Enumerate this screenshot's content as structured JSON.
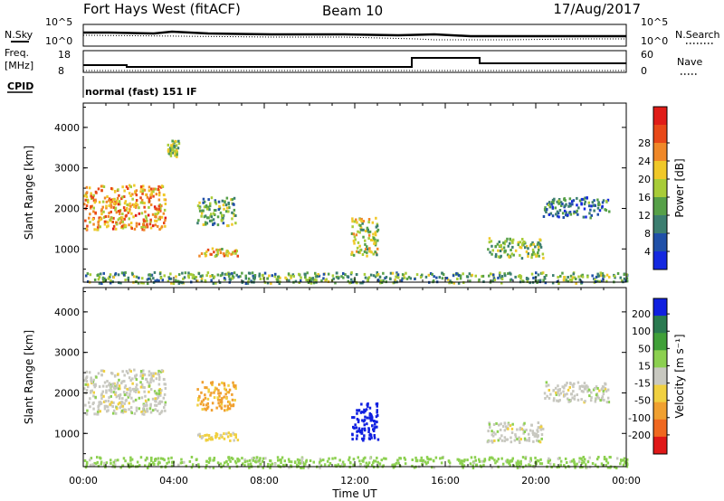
{
  "header": {
    "title": "Fort Hays West (fitACF)",
    "beam": "Beam 10",
    "date": "17/Aug/2017"
  },
  "status_panels": {
    "nsky_label": "N.Sky",
    "nsearch_label": "N.Search",
    "noise_ticks": [
      "10^5",
      "10^0"
    ],
    "freq_label_1": "Freq.",
    "freq_label_2": "[MHz]",
    "freq_ticks": [
      "18",
      "8"
    ],
    "nave_label": "Nave",
    "nave_ticks": [
      "60",
      "0"
    ],
    "cpid_label": "CPID",
    "cpid_text": "normal (fast) 151 IF"
  },
  "chart_data": [
    {
      "type": "heatmap",
      "title": "",
      "xlabel": "",
      "ylabel": "Slant Range [km]",
      "xlim": [
        "00:00",
        "24:00"
      ],
      "ylim": [
        180,
        4600
      ],
      "ytick_labels": [
        "1000",
        "2000",
        "3000",
        "4000"
      ],
      "colorbar": {
        "label": "Power [dB]",
        "range": [
          0,
          32
        ],
        "tick_labels": [
          "4",
          "8",
          "12",
          "16",
          "20",
          "24",
          "28"
        ],
        "colors": [
          "#1428e0",
          "#2050a8",
          "#3c7e70",
          "#56a048",
          "#a8cc38",
          "#f0c828",
          "#f08828",
          "#e84818",
          "#e01c18"
        ]
      },
      "regions": [
        {
          "t0": 0.0,
          "t1": 3.6,
          "r0": 1500,
          "r1": 2600,
          "value": 22
        },
        {
          "t0": 3.7,
          "t1": 4.2,
          "r0": 3300,
          "r1": 3700,
          "value": 14
        },
        {
          "t0": 5.0,
          "t1": 6.7,
          "r0": 1600,
          "r1": 2300,
          "value": 12
        },
        {
          "t0": 5.0,
          "t1": 6.8,
          "r0": 850,
          "r1": 1050,
          "value": 20
        },
        {
          "t0": 11.8,
          "t1": 13.0,
          "r0": 850,
          "r1": 1800,
          "value": 16
        },
        {
          "t0": 17.8,
          "t1": 20.3,
          "r0": 800,
          "r1": 1300,
          "value": 14
        },
        {
          "t0": 20.3,
          "t1": 23.2,
          "r0": 1800,
          "r1": 2300,
          "value": 8
        },
        {
          "t0": 0.0,
          "t1": 24.0,
          "r0": 180,
          "r1": 450,
          "value": 12
        }
      ]
    },
    {
      "type": "heatmap",
      "title": "",
      "xlabel": "Time UT",
      "ylabel": "Slant Range [km]",
      "xlim": [
        "00:00",
        "24:00"
      ],
      "ylim": [
        180,
        4600
      ],
      "xtick_labels": [
        "00:00",
        "04:00",
        "08:00",
        "12:00",
        "16:00",
        "20:00",
        "00:00"
      ],
      "ytick_labels": [
        "1000",
        "2000",
        "3000",
        "4000"
      ],
      "colorbar": {
        "label": "Velocity [m s⁻¹]",
        "tick_labels": [
          "200",
          "100",
          "50",
          "15",
          "-15",
          "-50",
          "-100",
          "-200"
        ],
        "colors": [
          "#1020e0",
          "#2a7a50",
          "#40a038",
          "#8cd050",
          "#c8c8c0",
          "#f0d040",
          "#f0a030",
          "#f06820",
          "#e01818"
        ]
      },
      "regions": [
        {
          "t0": 0.0,
          "t1": 3.6,
          "r0": 1500,
          "r1": 2600,
          "value": 0
        },
        {
          "t0": 5.0,
          "t1": 6.7,
          "r0": 1600,
          "r1": 2300,
          "value": -60
        },
        {
          "t0": 5.0,
          "t1": 6.8,
          "r0": 850,
          "r1": 1050,
          "value": -30
        },
        {
          "t0": 11.8,
          "t1": 13.0,
          "r0": 850,
          "r1": 1800,
          "value": 200
        },
        {
          "t0": 17.8,
          "t1": 20.3,
          "r0": 800,
          "r1": 1300,
          "value": 0
        },
        {
          "t0": 20.3,
          "t1": 23.2,
          "r0": 1800,
          "r1": 2300,
          "value": 0
        },
        {
          "t0": 0.0,
          "t1": 24.0,
          "r0": 180,
          "r1": 450,
          "value": 30
        }
      ]
    }
  ]
}
